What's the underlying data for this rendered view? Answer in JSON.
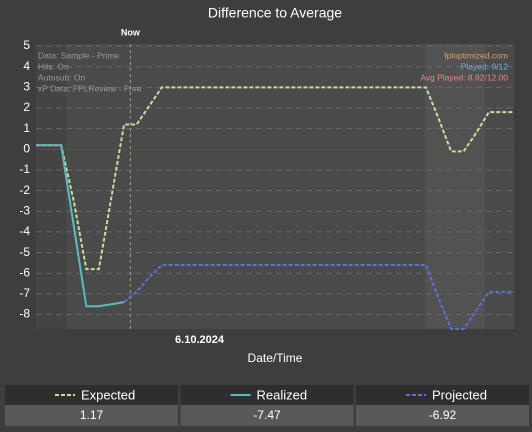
{
  "chart_data": {
    "type": "line",
    "title": "Difference to Average",
    "x_label": "Date/Time",
    "now_label": "Now",
    "now_index": 7.5,
    "categories": [
      null,
      null,
      null,
      null,
      null,
      null,
      null,
      null,
      null,
      null,
      null,
      null,
      null,
      "6.10.2024",
      null,
      null,
      null,
      null,
      null,
      null,
      null,
      null,
      null,
      null,
      null,
      null,
      null,
      null,
      null,
      null,
      null,
      null,
      null,
      null,
      null,
      null,
      null,
      null,
      null
    ],
    "series": [
      {
        "name": "Expected",
        "color": "#c8dca0",
        "style": "dashed",
        "total": 1.17,
        "values": [
          0.2,
          0.2,
          0.2,
          -2.5,
          -5.8,
          -5.8,
          -2.3,
          1.2,
          1.2,
          2.1,
          3,
          3,
          3,
          3,
          3,
          3,
          3,
          3,
          3,
          3,
          3,
          3,
          3,
          3,
          3,
          3,
          3,
          3,
          3,
          3,
          3,
          3,
          1.5,
          -0.1,
          -0.1,
          0.8,
          1.8,
          1.8,
          1.8
        ]
      },
      {
        "name": "Realized",
        "color": "#5bbcc0",
        "style": "solid",
        "total": -7.47,
        "values": [
          0.2,
          0.2,
          0.2,
          -3.7,
          -7.6,
          -7.6,
          -7.5,
          -7.4,
          null,
          null,
          null,
          null,
          null,
          null,
          null,
          null,
          null,
          null,
          null,
          null,
          null,
          null,
          null,
          null,
          null,
          null,
          null,
          null,
          null,
          null,
          null,
          null,
          null,
          null,
          null,
          null,
          null,
          null,
          null
        ]
      },
      {
        "name": "Projected",
        "color": "#5a72d6",
        "style": "dashed",
        "total": -6.92,
        "values": [
          null,
          null,
          null,
          null,
          null,
          null,
          null,
          -7.4,
          -6.9,
          -6.2,
          -5.6,
          -5.6,
          -5.6,
          -5.6,
          -5.6,
          -5.6,
          -5.6,
          -5.6,
          -5.6,
          -5.6,
          -5.6,
          -5.6,
          -5.6,
          -5.6,
          -5.6,
          -5.6,
          -5.6,
          -5.6,
          -5.6,
          -5.6,
          -5.6,
          -5.6,
          -7.2,
          -8.7,
          -8.7,
          -7.8,
          -6.9,
          -6.9,
          -6.9
        ]
      }
    ],
    "ylim": [
      -8.7,
      5.1
    ],
    "yticks": [
      -8,
      -7,
      -6,
      -5,
      -4,
      -3,
      -2,
      -1,
      0,
      1,
      2,
      3,
      4,
      5
    ],
    "grid": true,
    "zero_line_color": "#8a3a3a",
    "notes_left": [
      "Data: Sample - Prime",
      "Hits: On",
      "Autosub: On",
      "xP Data: FPLReview - Free"
    ],
    "notes_right": [
      {
        "text": "fploptimized.com",
        "color": "#d8a060"
      },
      {
        "text": "Played: 9/12",
        "color": "#6fb0e0"
      },
      {
        "text": "Avg Played: 8.92/12.00",
        "color": "#e08a80"
      }
    ]
  }
}
